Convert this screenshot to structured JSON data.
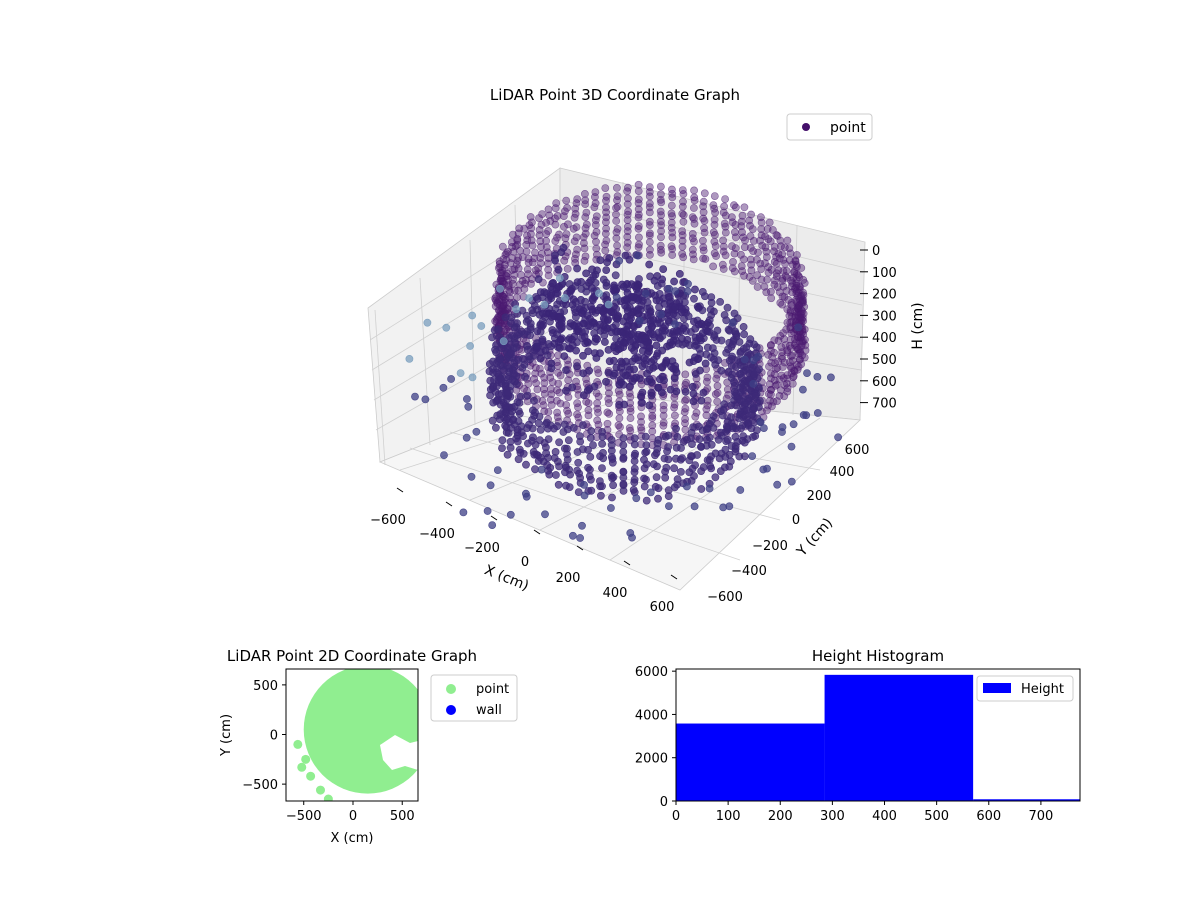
{
  "colors": {
    "point3d": "#44106a",
    "point3d_light": "#8fb0c8",
    "point2d": "#90ee90",
    "wall": "#0000ff",
    "histogram": "#0000ff",
    "pane": "#f2f2f2",
    "grid": "#d0d0d0"
  },
  "chart_data": [
    {
      "type": "scatter",
      "projection": "3d",
      "title": "LiDAR Point 3D Coordinate Graph",
      "xlabel": "X (cm)",
      "ylabel": "Y (cm)",
      "zlabel": "H (cm)",
      "xticks": [
        "−600",
        "−400",
        "−200",
        "0",
        "200",
        "400",
        "600"
      ],
      "yticks": [
        "−600",
        "−400",
        "−200",
        "0",
        "200",
        "400",
        "600"
      ],
      "zticks": [
        "0",
        "100",
        "200",
        "300",
        "400",
        "500",
        "600",
        "700"
      ],
      "xlim": [
        -700,
        700
      ],
      "ylim": [
        -700,
        700
      ],
      "zlim": [
        0,
        750
      ],
      "z_inverted": true,
      "grid": true,
      "legend": {
        "position": "top-right",
        "entries": [
          "point"
        ]
      },
      "series": [
        {
          "name": "point",
          "description_values": {
            "upper_ring": {
              "shape": "cylinder-wall",
              "radius": 600,
              "h_range": [
                80,
                420
              ],
              "center": [
                100,
                100
              ]
            },
            "lower_ring": {
              "shape": "ring",
              "radius": 500,
              "h_range": [
                420,
                720
              ],
              "center": [
                50,
                0
              ]
            },
            "central_cloud": {
              "center": [
                0,
                50
              ],
              "h_range": [
                150,
                550
              ]
            },
            "outliers": {
              "h_range": [
                600,
                760
              ],
              "r_range": [
                550,
                900
              ]
            }
          }
        }
      ]
    },
    {
      "type": "scatter",
      "title": "LiDAR Point 2D Coordinate Graph",
      "xlabel": "X (cm)",
      "ylabel": "Y (cm)",
      "xticks": [
        "−500",
        "0",
        "500"
      ],
      "yticks": [
        "−500",
        "0",
        "500"
      ],
      "xlim": [
        -680,
        660
      ],
      "ylim": [
        -670,
        660
      ],
      "legend": {
        "position": "right",
        "entries": [
          "point",
          "wall"
        ]
      },
      "series": [
        {
          "name": "point",
          "region": {
            "center": [
              150,
              50
            ],
            "radius": 650
          }
        },
        {
          "name": "wall",
          "values": []
        }
      ]
    },
    {
      "type": "bar",
      "subtype": "histogram",
      "title": "Height Histogram",
      "xticks": [
        "0",
        "100",
        "200",
        "300",
        "400",
        "500",
        "600",
        "700"
      ],
      "yticks": [
        "0",
        "2000",
        "4000",
        "6000"
      ],
      "xlim": [
        0,
        775
      ],
      "ylim": [
        0,
        6100
      ],
      "bins": [
        {
          "x0": 0,
          "x1": 285,
          "count": 3580
        },
        {
          "x0": 285,
          "x1": 570,
          "count": 5830
        },
        {
          "x0": 570,
          "x1": 775,
          "count": 80
        }
      ],
      "legend": {
        "position": "top-right",
        "entries": [
          "Height"
        ]
      },
      "series": [
        {
          "name": "Height"
        }
      ]
    }
  ]
}
